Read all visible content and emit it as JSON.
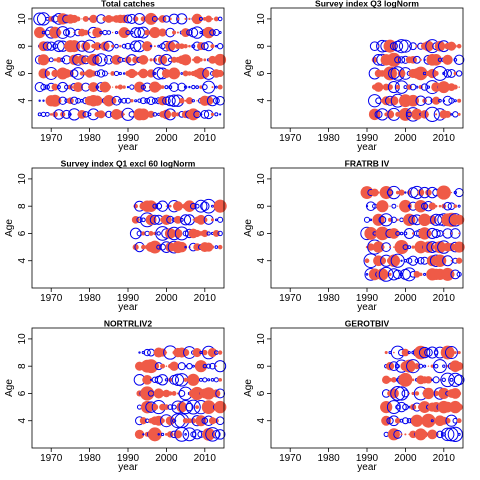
{
  "colors": {
    "positive": "#ef5a47",
    "negative": "#0000ee",
    "frame": "#000000"
  },
  "chart_data": [
    {
      "type": "scatter",
      "title": "Total catches",
      "xlabel": "year",
      "ylabel": "Age",
      "xlim": [
        1965,
        2015
      ],
      "ylim": [
        2,
        10.8
      ],
      "xticks": [
        1970,
        1980,
        1990,
        2000,
        2010
      ],
      "yticks": [
        4,
        6,
        8,
        10
      ],
      "ages": [
        3,
        4,
        5,
        6,
        7,
        8,
        9,
        10
      ],
      "year_range": [
        1967,
        2014
      ],
      "legend": "none",
      "grid": false
    },
    {
      "type": "scatter",
      "title": "Survey index Q3 logNorm",
      "xlabel": "year",
      "ylabel": "Age",
      "xlim": [
        1965,
        2015
      ],
      "ylim": [
        2,
        10.8
      ],
      "xticks": [
        1970,
        1980,
        1990,
        2000,
        2010
      ],
      "yticks": [
        4,
        6,
        8,
        10
      ],
      "ages": [
        3,
        4,
        5,
        6,
        7,
        8
      ],
      "year_range": [
        1992,
        2014
      ],
      "legend": "none",
      "grid": false
    },
    {
      "type": "scatter",
      "title": "Survey index Q1 excl 60 logNorm",
      "xlabel": "year",
      "ylabel": "Age",
      "xlim": [
        1965,
        2015
      ],
      "ylim": [
        2,
        10.8
      ],
      "xticks": [
        1970,
        1980,
        1990,
        2000,
        2010
      ],
      "yticks": [
        4,
        6,
        8,
        10
      ],
      "ages": [
        5,
        6,
        7,
        8
      ],
      "year_range": [
        1992,
        2014
      ],
      "legend": "none",
      "grid": false
    },
    {
      "type": "scatter",
      "title": "FRATRB IV",
      "xlabel": "year",
      "ylabel": "Age",
      "xlim": [
        1965,
        2015
      ],
      "ylim": [
        2,
        10.8
      ],
      "xticks": [
        1970,
        1980,
        1990,
        2000,
        2010
      ],
      "yticks": [
        4,
        6,
        8,
        10
      ],
      "ages": [
        3,
        4,
        5,
        6,
        7,
        8,
        9
      ],
      "year_range": [
        1990,
        2014
      ],
      "legend": "none",
      "grid": false
    },
    {
      "type": "scatter",
      "title": "NORTRLIV2",
      "xlabel": "year",
      "ylabel": "Age",
      "xlim": [
        1965,
        2015
      ],
      "ylim": [
        2,
        10.8
      ],
      "xticks": [
        1970,
        1980,
        1990,
        2000,
        2010
      ],
      "yticks": [
        4,
        6,
        8,
        10
      ],
      "ages": [
        3,
        4,
        5,
        6,
        7,
        8,
        9
      ],
      "year_range": [
        1993,
        2014
      ],
      "legend": "none",
      "grid": false
    },
    {
      "type": "scatter",
      "title": "GEROTBIV",
      "xlabel": "year",
      "ylabel": "Age",
      "xlim": [
        1965,
        2015
      ],
      "ylim": [
        2,
        10.8
      ],
      "xticks": [
        1970,
        1980,
        1990,
        2000,
        2010
      ],
      "yticks": [
        4,
        6,
        8,
        10
      ],
      "ages": [
        3,
        4,
        5,
        6,
        7,
        8,
        9
      ],
      "year_range": [
        1995,
        2014
      ],
      "legend": "none",
      "grid": false
    }
  ]
}
